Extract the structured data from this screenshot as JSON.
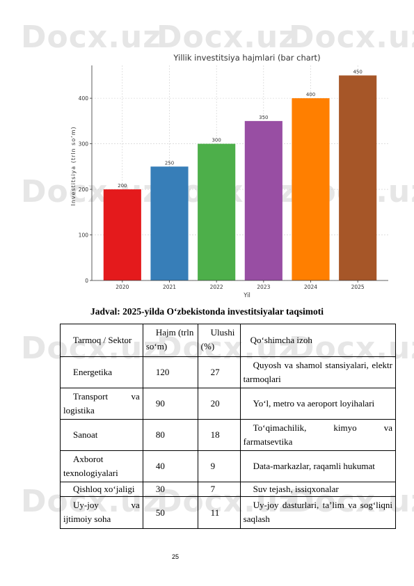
{
  "watermark": "Docx.uz",
  "chart_data": {
    "type": "bar",
    "title": "Yillik investitsiya hajmlari (bar chart)",
    "xlabel": "Yil",
    "ylabel": "Investitsiya (trln so‘m)",
    "categories": [
      "2020",
      "2021",
      "2022",
      "2023",
      "2024",
      "2025"
    ],
    "values": [
      200,
      250,
      300,
      350,
      400,
      450
    ],
    "data_labels": [
      "200",
      "250",
      "300",
      "350",
      "400",
      "450"
    ],
    "colors": [
      "#e41a1c",
      "#377eb8",
      "#4daf4a",
      "#984ea3",
      "#ff7f00",
      "#a65628"
    ],
    "yticks": [
      0,
      100,
      200,
      300,
      400
    ],
    "ylim": [
      0,
      472
    ],
    "grid": true
  },
  "table": {
    "caption": "Jadval: 2025-yilda O‘zbekistonda investitsiyalar taqsimoti",
    "headers": [
      "Tarmoq / Sektor",
      "Hajm (trln so‘m)",
      "Ulushi (%)",
      "Qo‘shimcha izoh"
    ],
    "rows": [
      [
        "Energetika",
        "120",
        "27",
        "Quyosh va shamol stansiyalari, elektr tarmoqlari"
      ],
      [
        "Transport va logistika",
        "90",
        "20",
        "Yo‘l, metro va aeroport loyihalari"
      ],
      [
        "Sanoat",
        "80",
        "18",
        "To‘qimachilik, kimyo va farmatsevtika"
      ],
      [
        "Axborot texnologiyalari",
        "40",
        "9",
        "Data-markazlar, raqamli hukumat"
      ],
      [
        "Qishloq xo‘jaligi",
        "30",
        "7",
        "Suv tejash, issiqxonalar"
      ],
      [
        "Uy-joy va ijtimoiy soha",
        "50",
        "11",
        "Uy-joy dasturlari, ta’lim va sog‘liqni saqlash"
      ]
    ]
  },
  "page_number": "25"
}
